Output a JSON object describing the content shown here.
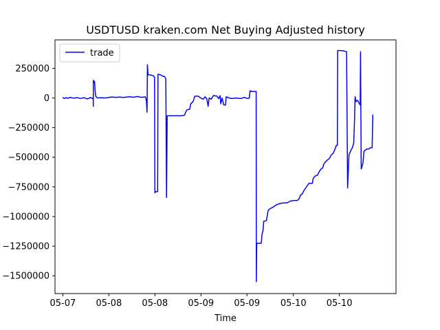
{
  "chart_data": {
    "type": "line",
    "title": "USDTUSD kraken.com Net Buying Adjusted history",
    "xlabel": "Time",
    "ylabel": "",
    "ylim": [
      -1650000,
      490000
    ],
    "xlim": [
      0,
      1
    ],
    "grid": false,
    "legend_placement": "top-left",
    "x_ticks": [
      {
        "pos": 0.023,
        "label": "05-07"
      },
      {
        "pos": 0.158,
        "label": "05-08"
      },
      {
        "pos": 0.293,
        "label": "05-08"
      },
      {
        "pos": 0.428,
        "label": "05-09"
      },
      {
        "pos": 0.563,
        "label": "05-09"
      },
      {
        "pos": 0.699,
        "label": "05-10"
      },
      {
        "pos": 0.834,
        "label": "05-10"
      }
    ],
    "y_ticks": [
      {
        "value": 250000,
        "label": "250000"
      },
      {
        "value": 0,
        "label": "0"
      },
      {
        "value": -250000,
        "label": "−250000"
      },
      {
        "value": -500000,
        "label": "−500000"
      },
      {
        "value": -750000,
        "label": "−750000"
      },
      {
        "value": -1000000,
        "label": "−1000000"
      },
      {
        "value": -1250000,
        "label": "−1250000"
      },
      {
        "value": -1500000,
        "label": "−1500000"
      }
    ],
    "series": [
      {
        "name": "trade",
        "color": "#0000ff",
        "points": [
          [
            0.023,
            5000
          ],
          [
            0.027,
            -5000
          ],
          [
            0.032,
            3000
          ],
          [
            0.037,
            -3000
          ],
          [
            0.045,
            5000
          ],
          [
            0.055,
            -2000
          ],
          [
            0.065,
            3000
          ],
          [
            0.075,
            -4000
          ],
          [
            0.085,
            2000
          ],
          [
            0.095,
            -8000
          ],
          [
            0.105,
            4000
          ],
          [
            0.11,
            -5000
          ],
          [
            0.112,
            2000
          ],
          [
            0.1122,
            -70000
          ],
          [
            0.1125,
            150000
          ],
          [
            0.114,
            130000
          ],
          [
            0.116,
            140000
          ],
          [
            0.118,
            50000
          ],
          [
            0.12,
            10000
          ],
          [
            0.125,
            0
          ],
          [
            0.135,
            2000
          ],
          [
            0.145,
            0
          ],
          [
            0.155,
            3000
          ],
          [
            0.165,
            8000
          ],
          [
            0.18,
            5000
          ],
          [
            0.19,
            8000
          ],
          [
            0.2,
            4000
          ],
          [
            0.21,
            8000
          ],
          [
            0.22,
            10000
          ],
          [
            0.23,
            6000
          ],
          [
            0.24,
            12000
          ],
          [
            0.255,
            5000
          ],
          [
            0.265,
            10000
          ],
          [
            0.268,
            -20000
          ],
          [
            0.27,
            -120000
          ],
          [
            0.271,
            280000
          ],
          [
            0.273,
            195000
          ],
          [
            0.28,
            195000
          ],
          [
            0.29,
            185000
          ],
          [
            0.292,
            170000
          ],
          [
            0.293,
            -800000
          ],
          [
            0.296,
            -790000
          ],
          [
            0.301,
            -790000
          ],
          [
            0.302,
            200000
          ],
          [
            0.31,
            195000
          ],
          [
            0.315,
            185000
          ],
          [
            0.322,
            180000
          ],
          [
            0.325,
            160000
          ],
          [
            0.327,
            -840000
          ],
          [
            0.329,
            -150000
          ],
          [
            0.34,
            -150000
          ],
          [
            0.355,
            -150000
          ],
          [
            0.37,
            -150000
          ],
          [
            0.38,
            -145000
          ],
          [
            0.383,
            -120000
          ],
          [
            0.387,
            -100000
          ],
          [
            0.395,
            -95000
          ],
          [
            0.398,
            -50000
          ],
          [
            0.405,
            -30000
          ],
          [
            0.41,
            15000
          ],
          [
            0.42,
            15000
          ],
          [
            0.43,
            -5000
          ],
          [
            0.435,
            -10000
          ],
          [
            0.44,
            10000
          ],
          [
            0.445,
            -5000
          ],
          [
            0.449,
            -70000
          ],
          [
            0.452,
            0
          ],
          [
            0.458,
            -10000
          ],
          [
            0.465,
            20000
          ],
          [
            0.475,
            15000
          ],
          [
            0.48,
            -5000
          ],
          [
            0.484,
            20000
          ],
          [
            0.486,
            -50000
          ],
          [
            0.49,
            0
          ],
          [
            0.495,
            -60000
          ],
          [
            0.5,
            -60000
          ],
          [
            0.502,
            10000
          ],
          [
            0.51,
            0
          ],
          [
            0.52,
            -5000
          ],
          [
            0.53,
            0
          ],
          [
            0.545,
            -5000
          ],
          [
            0.555,
            5000
          ],
          [
            0.565,
            -5000
          ],
          [
            0.57,
            0
          ],
          [
            0.572,
            60000
          ],
          [
            0.577,
            55000
          ],
          [
            0.59,
            55000
          ],
          [
            0.5905,
            -1550000
          ],
          [
            0.5915,
            -1230000
          ],
          [
            0.595,
            -1225000
          ],
          [
            0.6,
            -1225000
          ],
          [
            0.605,
            -1225000
          ],
          [
            0.607,
            -1150000
          ],
          [
            0.61,
            -1120000
          ],
          [
            0.612,
            -1040000
          ],
          [
            0.62,
            -1035000
          ],
          [
            0.625,
            -950000
          ],
          [
            0.63,
            -935000
          ],
          [
            0.64,
            -920000
          ],
          [
            0.65,
            -900000
          ],
          [
            0.66,
            -890000
          ],
          [
            0.67,
            -885000
          ],
          [
            0.68,
            -885000
          ],
          [
            0.69,
            -870000
          ],
          [
            0.7,
            -865000
          ],
          [
            0.71,
            -865000
          ],
          [
            0.715,
            -855000
          ],
          [
            0.72,
            -820000
          ],
          [
            0.725,
            -810000
          ],
          [
            0.73,
            -780000
          ],
          [
            0.735,
            -760000
          ],
          [
            0.74,
            -740000
          ],
          [
            0.745,
            -720000
          ],
          [
            0.755,
            -720000
          ],
          [
            0.757,
            -680000
          ],
          [
            0.762,
            -660000
          ],
          [
            0.77,
            -650000
          ],
          [
            0.775,
            -620000
          ],
          [
            0.78,
            -600000
          ],
          [
            0.785,
            -590000
          ],
          [
            0.788,
            -560000
          ],
          [
            0.793,
            -540000
          ],
          [
            0.8,
            -520000
          ],
          [
            0.805,
            -510000
          ],
          [
            0.81,
            -480000
          ],
          [
            0.815,
            -470000
          ],
          [
            0.82,
            -440000
          ],
          [
            0.825,
            -400000
          ],
          [
            0.828,
            -400000
          ],
          [
            0.829,
            400000
          ],
          [
            0.835,
            400000
          ],
          [
            0.845,
            398000
          ],
          [
            0.855,
            390000
          ],
          [
            0.858,
            -760000
          ],
          [
            0.862,
            -480000
          ],
          [
            0.868,
            -440000
          ],
          [
            0.872,
            -420000
          ],
          [
            0.876,
            -380000
          ],
          [
            0.878,
            -220000
          ],
          [
            0.88,
            10000
          ],
          [
            0.883,
            -30000
          ],
          [
            0.887,
            -20000
          ],
          [
            0.891,
            -40000
          ],
          [
            0.895,
            -60000
          ],
          [
            0.896,
            390000
          ],
          [
            0.898,
            -600000
          ],
          [
            0.9,
            -580000
          ],
          [
            0.903,
            -550000
          ],
          [
            0.906,
            -450000
          ],
          [
            0.91,
            -440000
          ],
          [
            0.915,
            -430000
          ],
          [
            0.92,
            -430000
          ],
          [
            0.925,
            -420000
          ],
          [
            0.93,
            -420000
          ],
          [
            0.932,
            -140000
          ]
        ]
      }
    ]
  }
}
